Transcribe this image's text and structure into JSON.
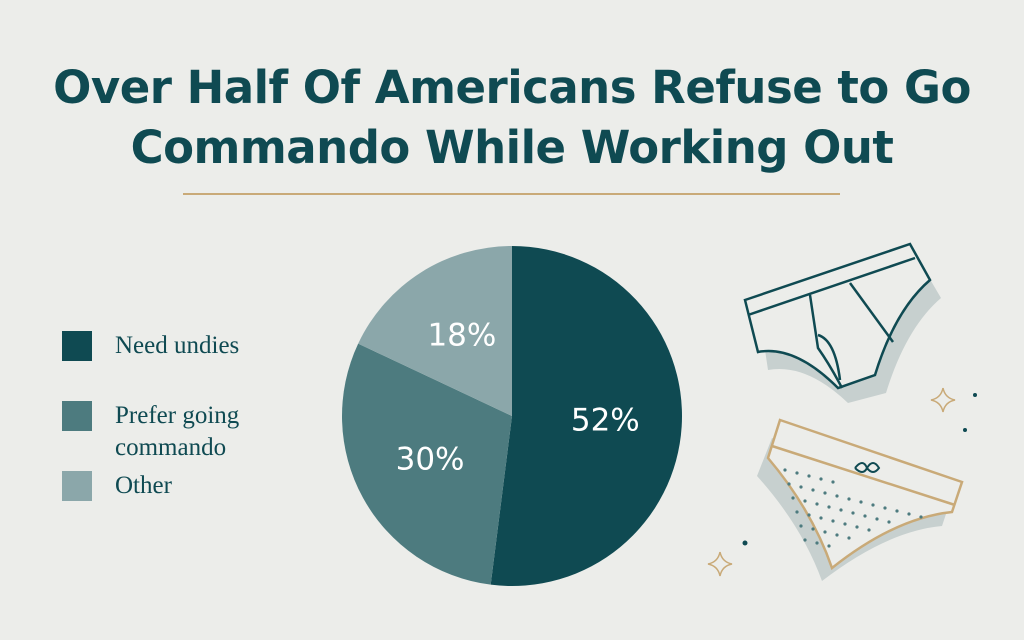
{
  "chart_data": {
    "type": "pie",
    "title": "Over Half Of Americans Refuse to Go Commando While Working Out",
    "categories": [
      "Need undies",
      "Prefer going commando",
      "Other"
    ],
    "values": [
      52,
      30,
      18
    ],
    "value_labels": [
      "52%",
      "30%",
      "18%"
    ],
    "colors": [
      "#0f4a52",
      "#4d7b7f",
      "#8ba7aa"
    ],
    "legend": "left"
  }
}
